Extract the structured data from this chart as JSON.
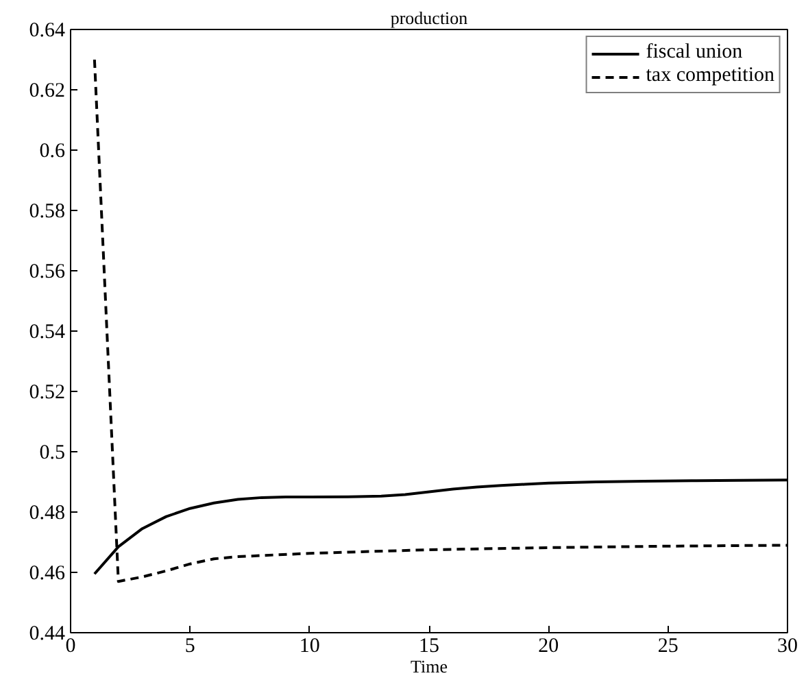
{
  "chart_data": {
    "type": "line",
    "title": "production",
    "xlabel": "Time",
    "xlim": [
      0,
      30
    ],
    "ylim": [
      0.44,
      0.64
    ],
    "xticks": [
      0,
      5,
      10,
      15,
      20,
      25,
      30
    ],
    "yticks": [
      0.44,
      0.46,
      0.48,
      0.5,
      0.52,
      0.54,
      0.56,
      0.58,
      0.6,
      0.62,
      0.64
    ],
    "grid": false,
    "legend": "top right",
    "marker": "none",
    "series": [
      {
        "name": "fiscal union",
        "color": "#000000",
        "line_style": "solid",
        "x": [
          1,
          2,
          3,
          4,
          5,
          6,
          7,
          8,
          9,
          10,
          12,
          13,
          14,
          15,
          16,
          17,
          18,
          19,
          20,
          22,
          24,
          26,
          28,
          30
        ],
        "values": [
          0.4595,
          0.4685,
          0.4745,
          0.4785,
          0.4812,
          0.483,
          0.4842,
          0.4848,
          0.485,
          0.485,
          0.4851,
          0.4853,
          0.4858,
          0.4867,
          0.4876,
          0.4883,
          0.4888,
          0.4892,
          0.4896,
          0.49,
          0.4902,
          0.4904,
          0.4905,
          0.4906
        ]
      },
      {
        "name": "tax competition",
        "color": "#000000",
        "line_style": "dashed",
        "x": [
          1,
          2,
          3,
          4,
          5,
          6,
          7,
          8,
          10,
          12,
          15,
          20,
          25,
          30
        ],
        "values": [
          0.63,
          0.457,
          0.4585,
          0.4605,
          0.4628,
          0.4645,
          0.4652,
          0.4656,
          0.4663,
          0.4668,
          0.4675,
          0.4682,
          0.4687,
          0.469
        ]
      }
    ]
  }
}
